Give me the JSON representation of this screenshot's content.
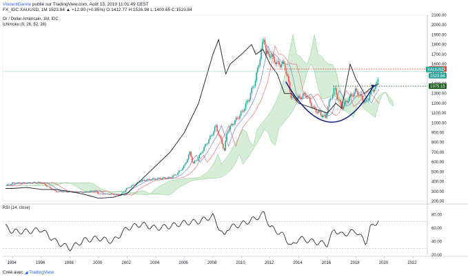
{
  "header": {
    "author": "VincentGanne",
    "published_text": "publié sur TradingView.com, Août 13, 2019 11:01:49 CEST",
    "symbol_line": "FX_IDC:XAUUSD, 1M  1523.84  ▲ +12.90 (+0.85%)  O:1412.77  H:1526.98  L:1400.65  C:1523.84"
  },
  "chart_title": "Or / Dollar Américain, 1M, IDC",
  "indicator_ichimoku": "Ichimoku (9, 26, 52, 26)",
  "indicator_rsi": "RSI (14, close)",
  "footer": {
    "created_with": "Créé avec",
    "brand": "TradingView"
  },
  "colors": {
    "candle_up": "#26a69a",
    "candle_down": "#ef5350",
    "cloud_bull": "#a5d6a7",
    "cloud_bear": "#ef9a9a",
    "arc": "#1a237e",
    "resistance": "#e53935",
    "support": "#1b5e20",
    "comparison_line": "#131722"
  },
  "chart_data": [
    {
      "type": "line",
      "title": "Or / Dollar Américain, 1M, IDC",
      "x_ticks": [
        "1994",
        "1996",
        "1998",
        "2000",
        "2002",
        "2004",
        "2006",
        "2008",
        "2010",
        "2012",
        "2014",
        "2016",
        "2018",
        "2020",
        "2022"
      ],
      "x_range": [
        1993.3,
        2023.0
      ],
      "y_ticks": [
        200,
        300,
        400,
        500,
        600,
        700,
        800,
        900,
        1000,
        1100,
        1200,
        1300,
        1400,
        1500,
        1600,
        1700,
        1800,
        1900,
        2000,
        2100
      ],
      "y_range": [
        200,
        2100
      ],
      "price_labels": [
        {
          "text": "1550.00",
          "value": 1550,
          "color": "#e53935"
        },
        {
          "text": "XAUUSD",
          "value": 1523.84,
          "color": "#26a69a"
        },
        {
          "text": "1523.84",
          "value": 1523.84,
          "color": "#26a69a"
        },
        {
          "text": "1375.15",
          "value": 1375.15,
          "color": "#1b5e20"
        }
      ],
      "series": [
        {
          "role": "price",
          "x": [
            1993.5,
            1994,
            1995,
            1996,
            1997,
            1998,
            1999,
            1999.75,
            2000,
            2001,
            2001.5,
            2002,
            2003,
            2004,
            2005,
            2005.5,
            2006,
            2006.4,
            2006.6,
            2007,
            2008,
            2008.2,
            2008.8,
            2009,
            2010,
            2010.5,
            2011,
            2011.6,
            2011.7,
            2012,
            2012.5,
            2013,
            2013.3,
            2013.5,
            2014,
            2014.5,
            2015,
            2015.9,
            2016,
            2016.5,
            2017,
            2017.5,
            2018,
            2018.7,
            2019,
            2019.5,
            2019.6
          ],
          "y": [
            360,
            385,
            385,
            390,
            300,
            295,
            290,
            310,
            275,
            270,
            260,
            330,
            410,
            430,
            440,
            480,
            560,
            700,
            580,
            650,
            900,
            970,
            720,
            920,
            1100,
            1240,
            1450,
            1900,
            1700,
            1700,
            1600,
            1600,
            1400,
            1250,
            1250,
            1300,
            1150,
            1050,
            1150,
            1350,
            1150,
            1250,
            1330,
            1200,
            1300,
            1400,
            1523.84
          ]
        },
        {
          "role": "comparison",
          "x": [
            1993.5,
            1994,
            1995,
            1996,
            1997,
            1998,
            1999,
            2000,
            2001,
            2002,
            2003,
            2004,
            2005,
            2006,
            2007,
            2008,
            2008.4,
            2008.9,
            2009.2,
            2010,
            2010.7,
            2011,
            2011.5,
            2012,
            2012.5,
            2013,
            2013.5,
            2014,
            2015,
            2016,
            2016.6,
            2017,
            2017.6,
            2018,
            2018.6,
            2019,
            2019.6
          ],
          "y": [
            330,
            330,
            340,
            320,
            320,
            300,
            270,
            230,
            240,
            280,
            420,
            560,
            700,
            900,
            1200,
            1700,
            1850,
            1500,
            1600,
            1700,
            1800,
            1700,
            1750,
            1600,
            1500,
            1300,
            1300,
            1200,
            1150,
            1100,
            1200,
            1150,
            1600,
            1450,
            1300,
            1350,
            1400
          ]
        }
      ],
      "annotations": [
        "resistance 1550.00",
        "neckline 1375.15",
        "cup arc",
        "arrow"
      ]
    },
    {
      "type": "line",
      "title": "RSI (14, close)",
      "y_ticks": [
        20,
        40,
        60,
        80
      ],
      "y_labels": [
        "20.00",
        "40.00",
        "60.00",
        "80.00"
      ],
      "y_range": [
        20,
        90
      ],
      "guide_levels": [
        70,
        30
      ],
      "x": [
        1993.5,
        1994,
        1995,
        1996,
        1997,
        1998,
        1999,
        2000,
        2001,
        2002,
        2003,
        2004,
        2005,
        2006,
        2007,
        2008,
        2008.8,
        2009,
        2010,
        2011,
        2011.6,
        2012,
        2013,
        2013.5,
        2014,
        2015,
        2016,
        2016.5,
        2017,
        2018,
        2018.7,
        2019,
        2019.6
      ],
      "y": [
        62,
        55,
        55,
        58,
        40,
        30,
        42,
        45,
        40,
        60,
        66,
        60,
        63,
        68,
        70,
        78,
        46,
        60,
        66,
        75,
        82,
        62,
        48,
        32,
        45,
        40,
        36,
        58,
        50,
        56,
        38,
        60,
        72
      ]
    }
  ]
}
